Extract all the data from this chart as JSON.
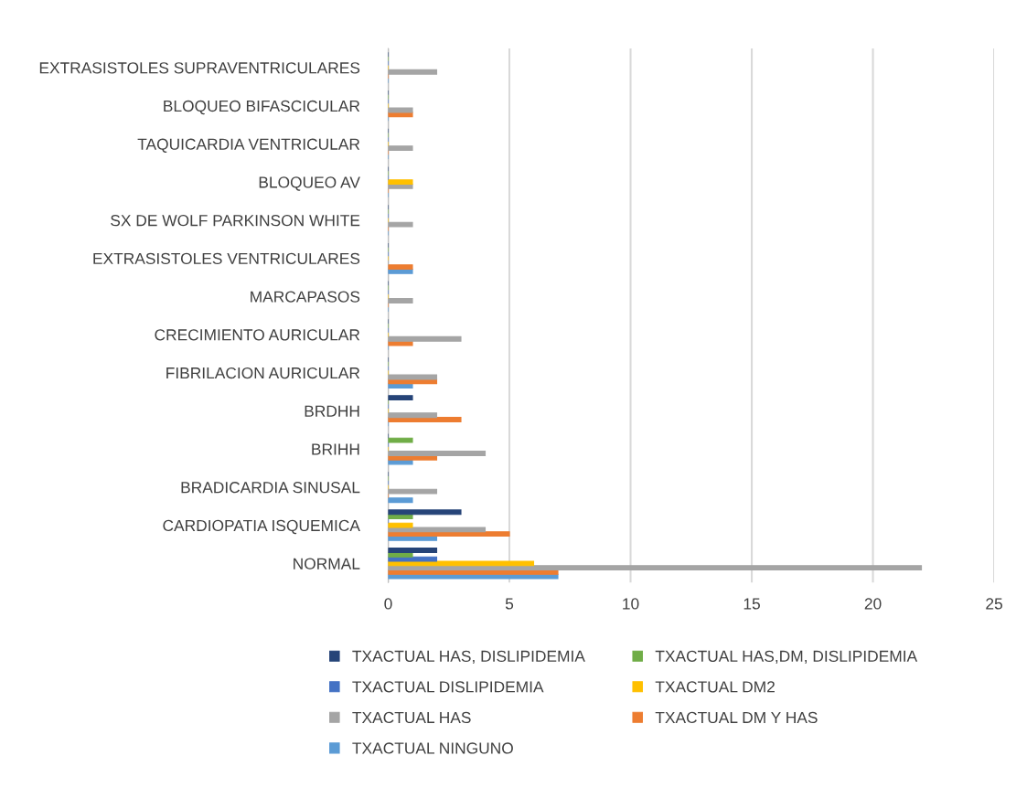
{
  "chart_data": {
    "type": "bar",
    "orientation": "horizontal",
    "categories": [
      "EXTRASISTOLES SUPRAVENTRICULARES",
      "BLOQUEO BIFASCICULAR",
      "TAQUICARDIA VENTRICULAR",
      "BLOQUEO AV",
      "SX DE WOLF PARKINSON WHITE",
      "EXTRASISTOLES VENTRICULARES",
      "MARCAPASOS",
      "CRECIMIENTO AURICULAR",
      "FIBRILACION AURICULAR",
      "BRDHH",
      "BRIHH",
      "BRADICARDIA SINUSAL",
      "CARDIOPATIA ISQUEMICA",
      "NORMAL"
    ],
    "series": [
      {
        "name": "TXACTUAL NINGUNO",
        "color": "#5b9bd5",
        "values": [
          0,
          0,
          0,
          0,
          0,
          1,
          0,
          0,
          1,
          0,
          1,
          1,
          2,
          7
        ]
      },
      {
        "name": "TXACTUAL DM Y HAS",
        "color": "#ed7d31",
        "values": [
          0,
          1,
          0,
          0,
          0,
          1,
          0,
          1,
          2,
          3,
          2,
          0,
          5,
          7
        ]
      },
      {
        "name": "TXACTUAL HAS",
        "color": "#a5a5a5",
        "values": [
          2,
          1,
          1,
          1,
          1,
          0,
          1,
          3,
          2,
          2,
          4,
          2,
          4,
          22
        ]
      },
      {
        "name": "TXACTUAL DM2",
        "color": "#ffc000",
        "values": [
          0,
          0,
          0,
          1,
          0,
          0,
          0,
          0,
          0,
          0,
          0,
          0,
          1,
          6
        ]
      },
      {
        "name": "TXACTUAL DISLIPIDEMIA",
        "color": "#4472c4",
        "values": [
          0,
          0,
          0,
          0,
          0,
          0,
          0,
          0,
          0,
          0,
          0,
          0,
          0,
          2
        ]
      },
      {
        "name": "TXACTUAL HAS,DM, DISLIPIDEMIA",
        "color": "#70ad47",
        "values": [
          0,
          0,
          0,
          0,
          0,
          0,
          0,
          0,
          0,
          0,
          1,
          0,
          1,
          1
        ]
      },
      {
        "name": "TXACTUAL HAS, DISLIPIDEMIA",
        "color": "#264478",
        "values": [
          0,
          0,
          0,
          0,
          0,
          0,
          0,
          0,
          0,
          1,
          0,
          0,
          3,
          2
        ]
      }
    ],
    "xlim": [
      0,
      25
    ],
    "xticks": [
      0,
      5,
      10,
      15,
      20,
      25
    ],
    "grid": "x",
    "legend": "bottom"
  }
}
